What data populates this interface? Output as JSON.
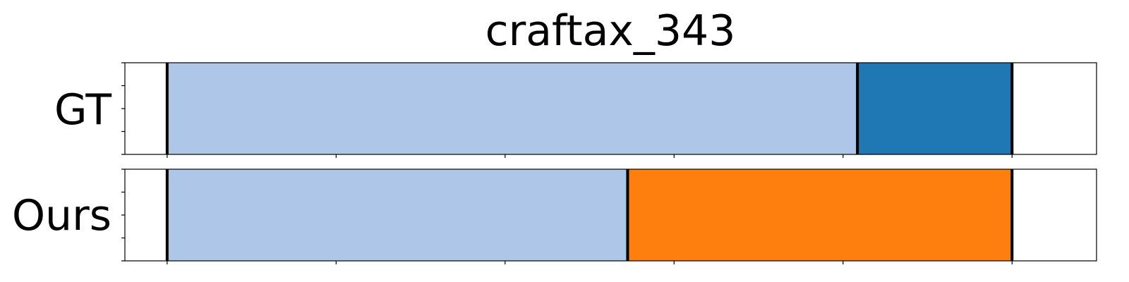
{
  "chart_data": {
    "type": "segmentation",
    "title": "craftax_343",
    "xlim": [
      0,
      1100
    ],
    "xticks": [
      0,
      200,
      400,
      600,
      800,
      1000
    ],
    "rows": [
      {
        "label": "GT",
        "segments": [
          {
            "start": 0,
            "end": 817,
            "color": "#aec7e8"
          },
          {
            "start": 817,
            "end": 1000,
            "color": "#1f77b4"
          }
        ],
        "boundaries": [
          0,
          817,
          1000
        ]
      },
      {
        "label": "Ours",
        "segments": [
          {
            "start": 0,
            "end": 545,
            "color": "#aec7e8"
          },
          {
            "start": 545,
            "end": 1000,
            "color": "#ff7f0e"
          }
        ],
        "boundaries": [
          0,
          545,
          1000
        ]
      }
    ]
  }
}
